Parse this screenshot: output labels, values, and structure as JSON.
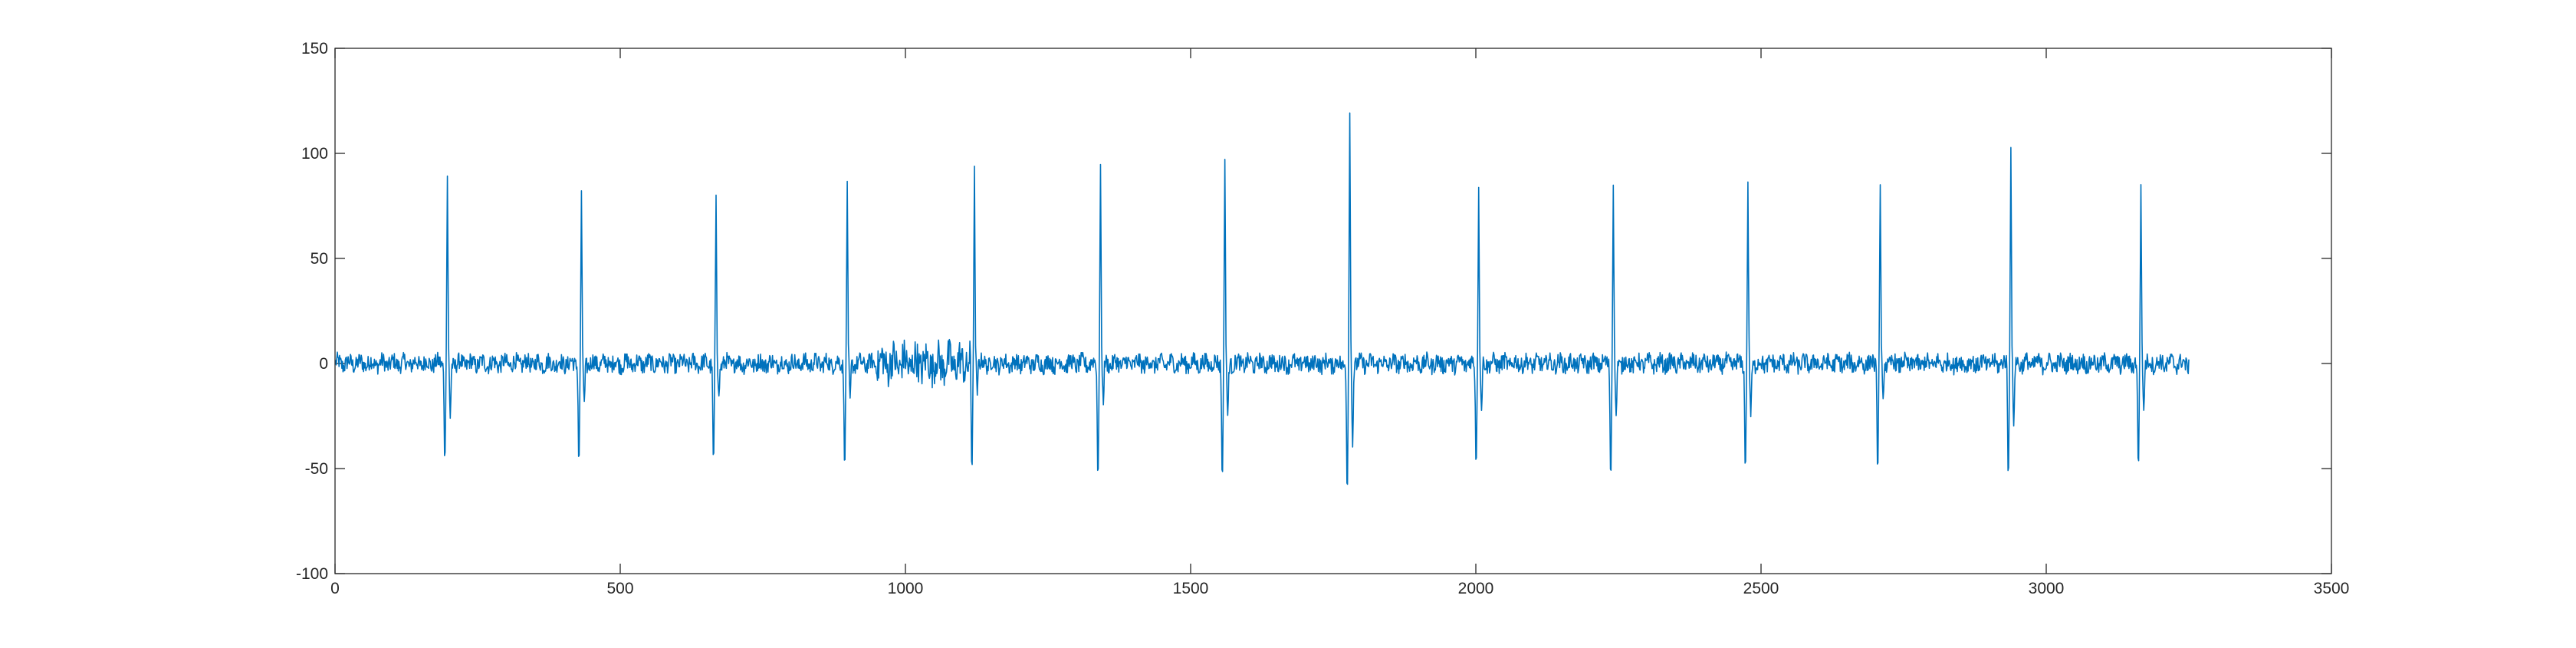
{
  "chart_data": {
    "type": "line",
    "title": "",
    "xlabel": "",
    "ylabel": "",
    "xlim": [
      0,
      3500
    ],
    "ylim": [
      -100,
      150
    ],
    "grid": false,
    "legend": "none",
    "x_ticks": [
      0,
      500,
      1000,
      1500,
      2000,
      2500,
      3000,
      3500
    ],
    "y_ticks": [
      -100,
      -50,
      0,
      50,
      100,
      150
    ],
    "series": [
      {
        "color": "#0072BD",
        "x_start": 1,
        "x_end": 3250,
        "baseline_noise_amplitude": 4,
        "beats": [
          {
            "x": 197,
            "r_peak": 89,
            "q_trough": -47,
            "s_trough": -26
          },
          {
            "x": 432,
            "r_peak": 81,
            "q_trough": -48,
            "s_trough": -19
          },
          {
            "x": 668,
            "r_peak": 80,
            "q_trough": -48,
            "s_trough": -16
          },
          {
            "x": 898,
            "r_peak": 87,
            "q_trough": -49,
            "s_trough": -17
          },
          {
            "x": 1121,
            "r_peak": 92,
            "q_trough": -52,
            "s_trough": -13
          },
          {
            "x": 1342,
            "r_peak": 95,
            "q_trough": -56,
            "s_trough": -19
          },
          {
            "x": 1560,
            "r_peak": 98,
            "q_trough": -56,
            "s_trough": -26
          },
          {
            "x": 1779,
            "r_peak": 120,
            "q_trough": -63,
            "s_trough": -39
          },
          {
            "x": 2005,
            "r_peak": 83,
            "q_trough": -49,
            "s_trough": -23
          },
          {
            "x": 2241,
            "r_peak": 85,
            "q_trough": -55,
            "s_trough": -26
          },
          {
            "x": 2477,
            "r_peak": 85,
            "q_trough": -51,
            "s_trough": -25
          },
          {
            "x": 2709,
            "r_peak": 86,
            "q_trough": -51,
            "s_trough": -18
          },
          {
            "x": 2938,
            "r_peak": 104,
            "q_trough": -55,
            "s_trough": -31
          },
          {
            "x": 3166,
            "r_peak": 85,
            "q_trough": -51,
            "s_trough": -22
          }
        ]
      }
    ]
  }
}
